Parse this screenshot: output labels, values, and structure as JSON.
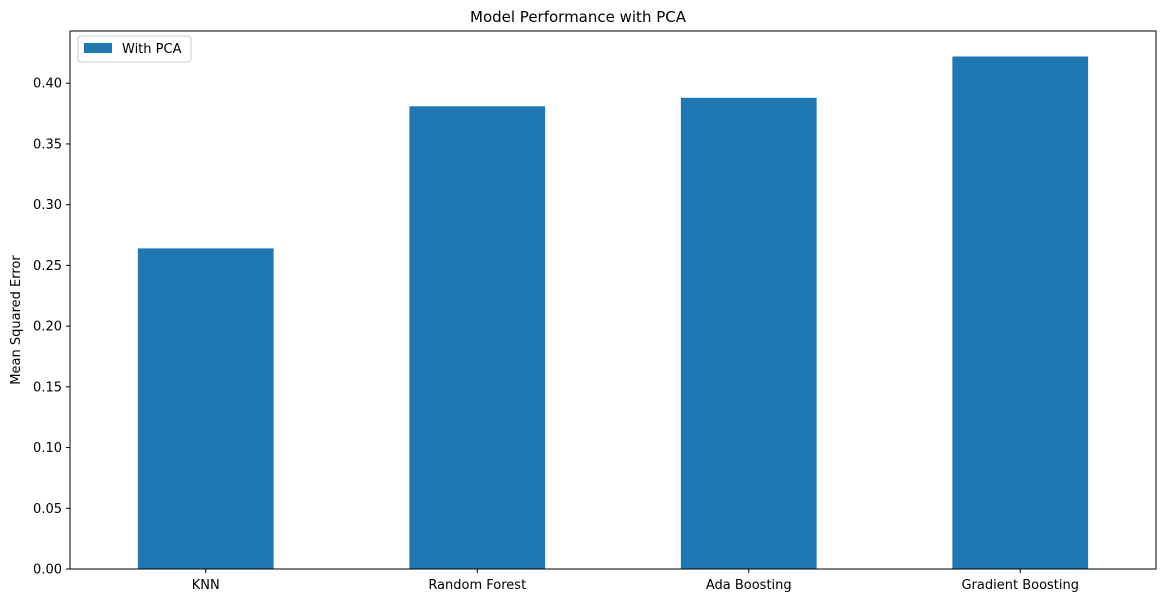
{
  "chart_data": {
    "type": "bar",
    "title": "Model Performance with PCA",
    "xlabel": "",
    "ylabel": "Mean Squared Error",
    "categories": [
      "KNN",
      "Random Forest",
      "Ada Boosting",
      "Gradient Boosting"
    ],
    "series": [
      {
        "name": "With PCA",
        "values": [
          0.264,
          0.381,
          0.388,
          0.422
        ],
        "color": "#1f77b4"
      }
    ],
    "ylim": [
      0,
      0.443
    ],
    "yticks": [
      0.0,
      0.05,
      0.1,
      0.15,
      0.2,
      0.25,
      0.3,
      0.35,
      0.4
    ],
    "ytick_labels": [
      "0.00",
      "0.05",
      "0.10",
      "0.15",
      "0.20",
      "0.25",
      "0.30",
      "0.35",
      "0.40"
    ],
    "grid": false,
    "legend_position": "top-left"
  }
}
